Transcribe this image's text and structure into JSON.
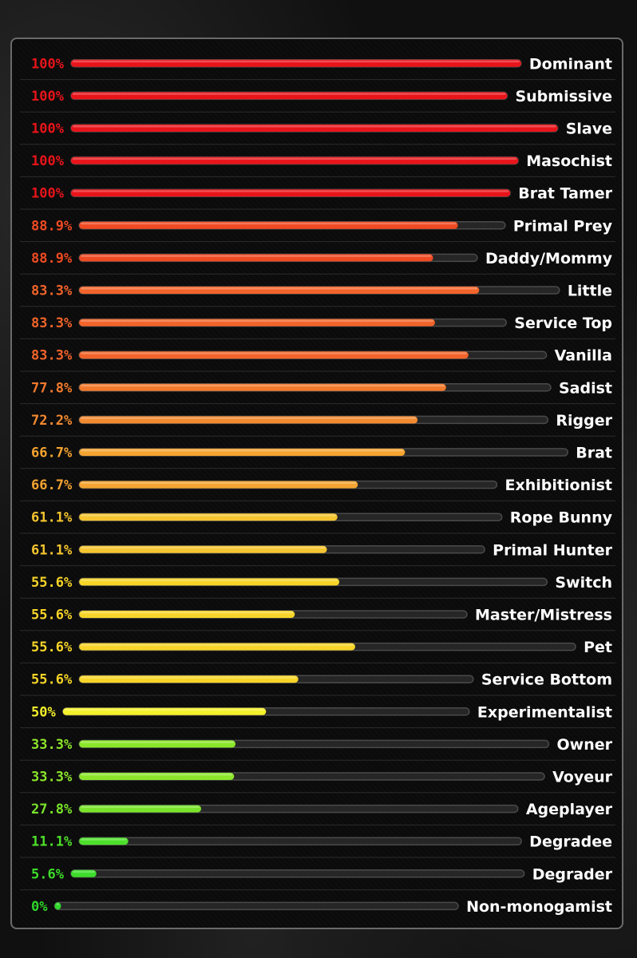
{
  "chart_data": {
    "type": "bar",
    "orientation": "horizontal",
    "categories": [
      "Dominant",
      "Submissive",
      "Slave",
      "Masochist",
      "Brat Tamer",
      "Primal Prey",
      "Daddy/Mommy",
      "Little",
      "Service Top",
      "Vanilla",
      "Sadist",
      "Rigger",
      "Brat",
      "Exhibitionist",
      "Rope Bunny",
      "Primal Hunter",
      "Switch",
      "Master/Mistress",
      "Pet",
      "Service Bottom",
      "Experimentalist",
      "Owner",
      "Voyeur",
      "Ageplayer",
      "Degradee",
      "Degrader",
      "Non-monogamist"
    ],
    "values": [
      100,
      100,
      100,
      100,
      100,
      88.9,
      88.9,
      83.3,
      83.3,
      83.3,
      77.8,
      72.2,
      66.7,
      66.7,
      61.1,
      61.1,
      55.6,
      55.6,
      55.6,
      55.6,
      50,
      33.3,
      33.3,
      27.8,
      11.1,
      5.6,
      0
    ],
    "value_labels": [
      "100%",
      "100%",
      "100%",
      "100%",
      "100%",
      "88.9%",
      "88.9%",
      "83.3%",
      "83.3%",
      "83.3%",
      "77.8%",
      "72.2%",
      "66.7%",
      "66.7%",
      "61.1%",
      "61.1%",
      "55.6%",
      "55.6%",
      "55.6%",
      "55.6%",
      "50%",
      "33.3%",
      "33.3%",
      "27.8%",
      "11.1%",
      "5.6%",
      "0%"
    ],
    "colors": [
      "#e8141a",
      "#e8141a",
      "#e8141a",
      "#e8141a",
      "#e8141a",
      "#ef4a22",
      "#ef4a22",
      "#f2642a",
      "#f2642a",
      "#f2642a",
      "#f27a2c",
      "#f38a30",
      "#f5a431",
      "#f5a431",
      "#f5c52f",
      "#f5c52f",
      "#f7d528",
      "#f7d528",
      "#f7d528",
      "#f7d528",
      "#f4f02a",
      "#8be62a",
      "#8be62a",
      "#79e42a",
      "#4de02a",
      "#3ddd2b",
      "#2fd82a"
    ],
    "xlim": [
      0,
      100
    ],
    "grid": false,
    "legend": "none"
  }
}
